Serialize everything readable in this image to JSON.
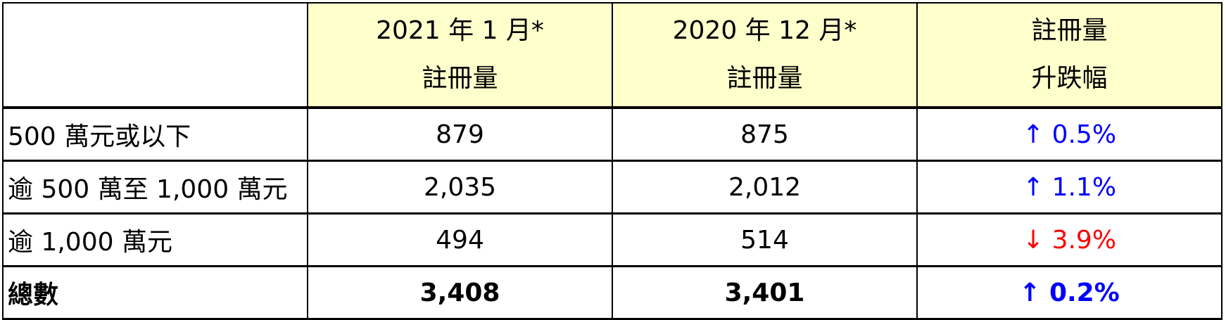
{
  "header": {
    "col1": [
      "2021 年 1 月*",
      "註冊量"
    ],
    "col2": [
      "2020 年 12 月*",
      "註冊量"
    ],
    "col3": [
      "註冊量",
      "升跌幅"
    ]
  },
  "rows": [
    {
      "label": "500 萬元或以下",
      "jan2021": "879",
      "dec2020": "875",
      "arrow": "↑",
      "change": "0.5%",
      "direction": "up"
    },
    {
      "label": "逾 500 萬至 1,000 萬元",
      "jan2021": "2,035",
      "dec2020": "2,012",
      "arrow": "↑",
      "change": "1.1%",
      "direction": "up"
    },
    {
      "label": "逾 1,000 萬元",
      "jan2021": "494",
      "dec2020": "514",
      "arrow": "↓",
      "change": "3.9%",
      "direction": "down"
    },
    {
      "label": "總數",
      "jan2021": "3,408",
      "dec2020": "3,401",
      "arrow": "↑",
      "change": "0.2%",
      "direction": "up"
    }
  ],
  "colors": {
    "header_bg": "#ffffcc",
    "up": "#0000ff",
    "down": "#ff0000"
  }
}
